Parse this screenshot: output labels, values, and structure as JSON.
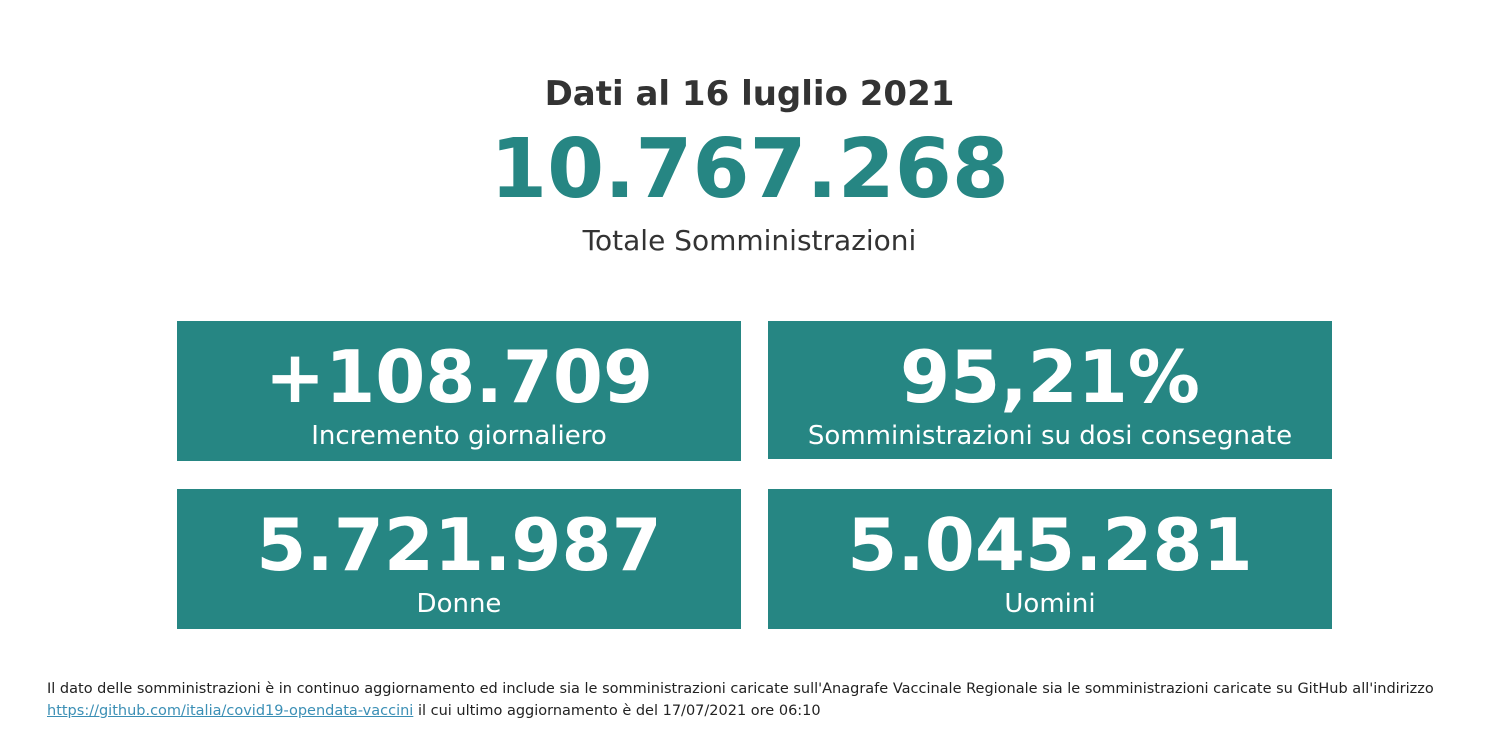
{
  "header": {
    "date_title": "Dati al 16 luglio 2021",
    "total_value": "10.767.268",
    "total_caption": "Totale Somministrazioni"
  },
  "cards": [
    {
      "value": "+108.709",
      "label": "Incremento giornaliero"
    },
    {
      "value": "95,21%",
      "label": "Somministrazioni su dosi consegnate"
    },
    {
      "value": "5.721.987",
      "label": "Donne"
    },
    {
      "value": "5.045.281",
      "label": "Uomini"
    }
  ],
  "footnote": {
    "text_before": "Il dato delle somministrazioni è in continuo aggiornamento ed include sia le somministrazioni caricate sull'Anagrafe Vaccinale Regionale sia le somministrazioni caricate su GitHub all'indirizzo",
    "link_text": "https://github.com/italia/covid19-opendata-vaccini",
    "text_after": "il cui ultimo aggiornamento è del 17/07/2021 ore 06:10"
  },
  "colors": {
    "accent": "#268683",
    "text": "#333333",
    "link": "#3b8fb5"
  }
}
